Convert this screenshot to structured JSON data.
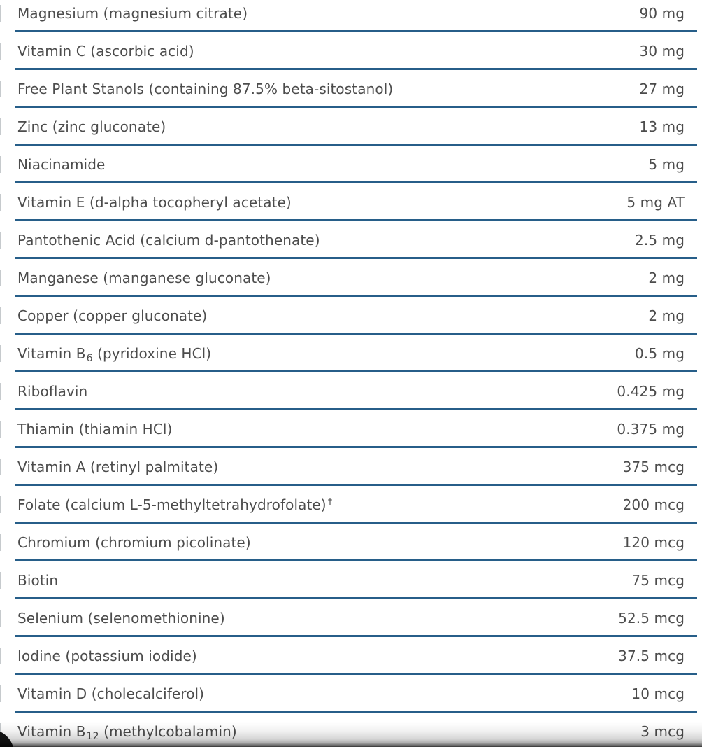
{
  "supplement_table": {
    "rows": [
      {
        "pre": "Magnesium (magnesium citrate)",
        "sub": "",
        "post": "",
        "sup": "",
        "amount": "90 mg"
      },
      {
        "pre": "Vitamin C (ascorbic acid)",
        "sub": "",
        "post": "",
        "sup": "",
        "amount": "30 mg"
      },
      {
        "pre": "Free Plant Stanols (containing 87.5% beta-sitostanol)",
        "sub": "",
        "post": "",
        "sup": "",
        "amount": "27 mg"
      },
      {
        "pre": "Zinc (zinc gluconate)",
        "sub": "",
        "post": "",
        "sup": "",
        "amount": "13 mg"
      },
      {
        "pre": "Niacinamide",
        "sub": "",
        "post": "",
        "sup": "",
        "amount": "5 mg"
      },
      {
        "pre": "Vitamin E (d-alpha tocopheryl acetate)",
        "sub": "",
        "post": "",
        "sup": "",
        "amount": "5 mg AT"
      },
      {
        "pre": "Pantothenic Acid (calcium d-pantothenate)",
        "sub": "",
        "post": "",
        "sup": "",
        "amount": "2.5 mg"
      },
      {
        "pre": "Manganese (manganese gluconate)",
        "sub": "",
        "post": "",
        "sup": "",
        "amount": "2 mg"
      },
      {
        "pre": "Copper (copper gluconate)",
        "sub": "",
        "post": "",
        "sup": "",
        "amount": "2 mg"
      },
      {
        "pre": "Vitamin B",
        "sub": "6",
        "post": " (pyridoxine HCl)",
        "sup": "",
        "amount": "0.5 mg"
      },
      {
        "pre": "Riboflavin",
        "sub": "",
        "post": "",
        "sup": "",
        "amount": "0.425 mg"
      },
      {
        "pre": "Thiamin (thiamin HCl)",
        "sub": "",
        "post": "",
        "sup": "",
        "amount": "0.375 mg"
      },
      {
        "pre": "Vitamin A (retinyl palmitate)",
        "sub": "",
        "post": "",
        "sup": "",
        "amount": "375 mcg"
      },
      {
        "pre": "Folate (calcium L-5-methyltetrahydrofolate)",
        "sub": "",
        "post": "",
        "sup": "†",
        "amount": "200 mcg"
      },
      {
        "pre": "Chromium (chromium picolinate)",
        "sub": "",
        "post": "",
        "sup": "",
        "amount": "120 mcg"
      },
      {
        "pre": "Biotin",
        "sub": "",
        "post": "",
        "sup": "",
        "amount": "75 mcg"
      },
      {
        "pre": "Selenium (selenomethionine)",
        "sub": "",
        "post": "",
        "sup": "",
        "amount": "52.5 mcg"
      },
      {
        "pre": "Iodine (potassium iodide)",
        "sub": "",
        "post": "",
        "sup": "",
        "amount": "37.5 mcg"
      },
      {
        "pre": "Vitamin D (cholecalciferol)",
        "sub": "",
        "post": "",
        "sup": "",
        "amount": "10 mcg"
      },
      {
        "pre": "Vitamin B",
        "sub": "12",
        "post": " (methylcobalamin)",
        "sup": "",
        "amount": "3 mcg"
      }
    ],
    "colors": {
      "separator": "#275e89",
      "text": "#4c4c4c",
      "tick": "#c6cacd"
    }
  }
}
